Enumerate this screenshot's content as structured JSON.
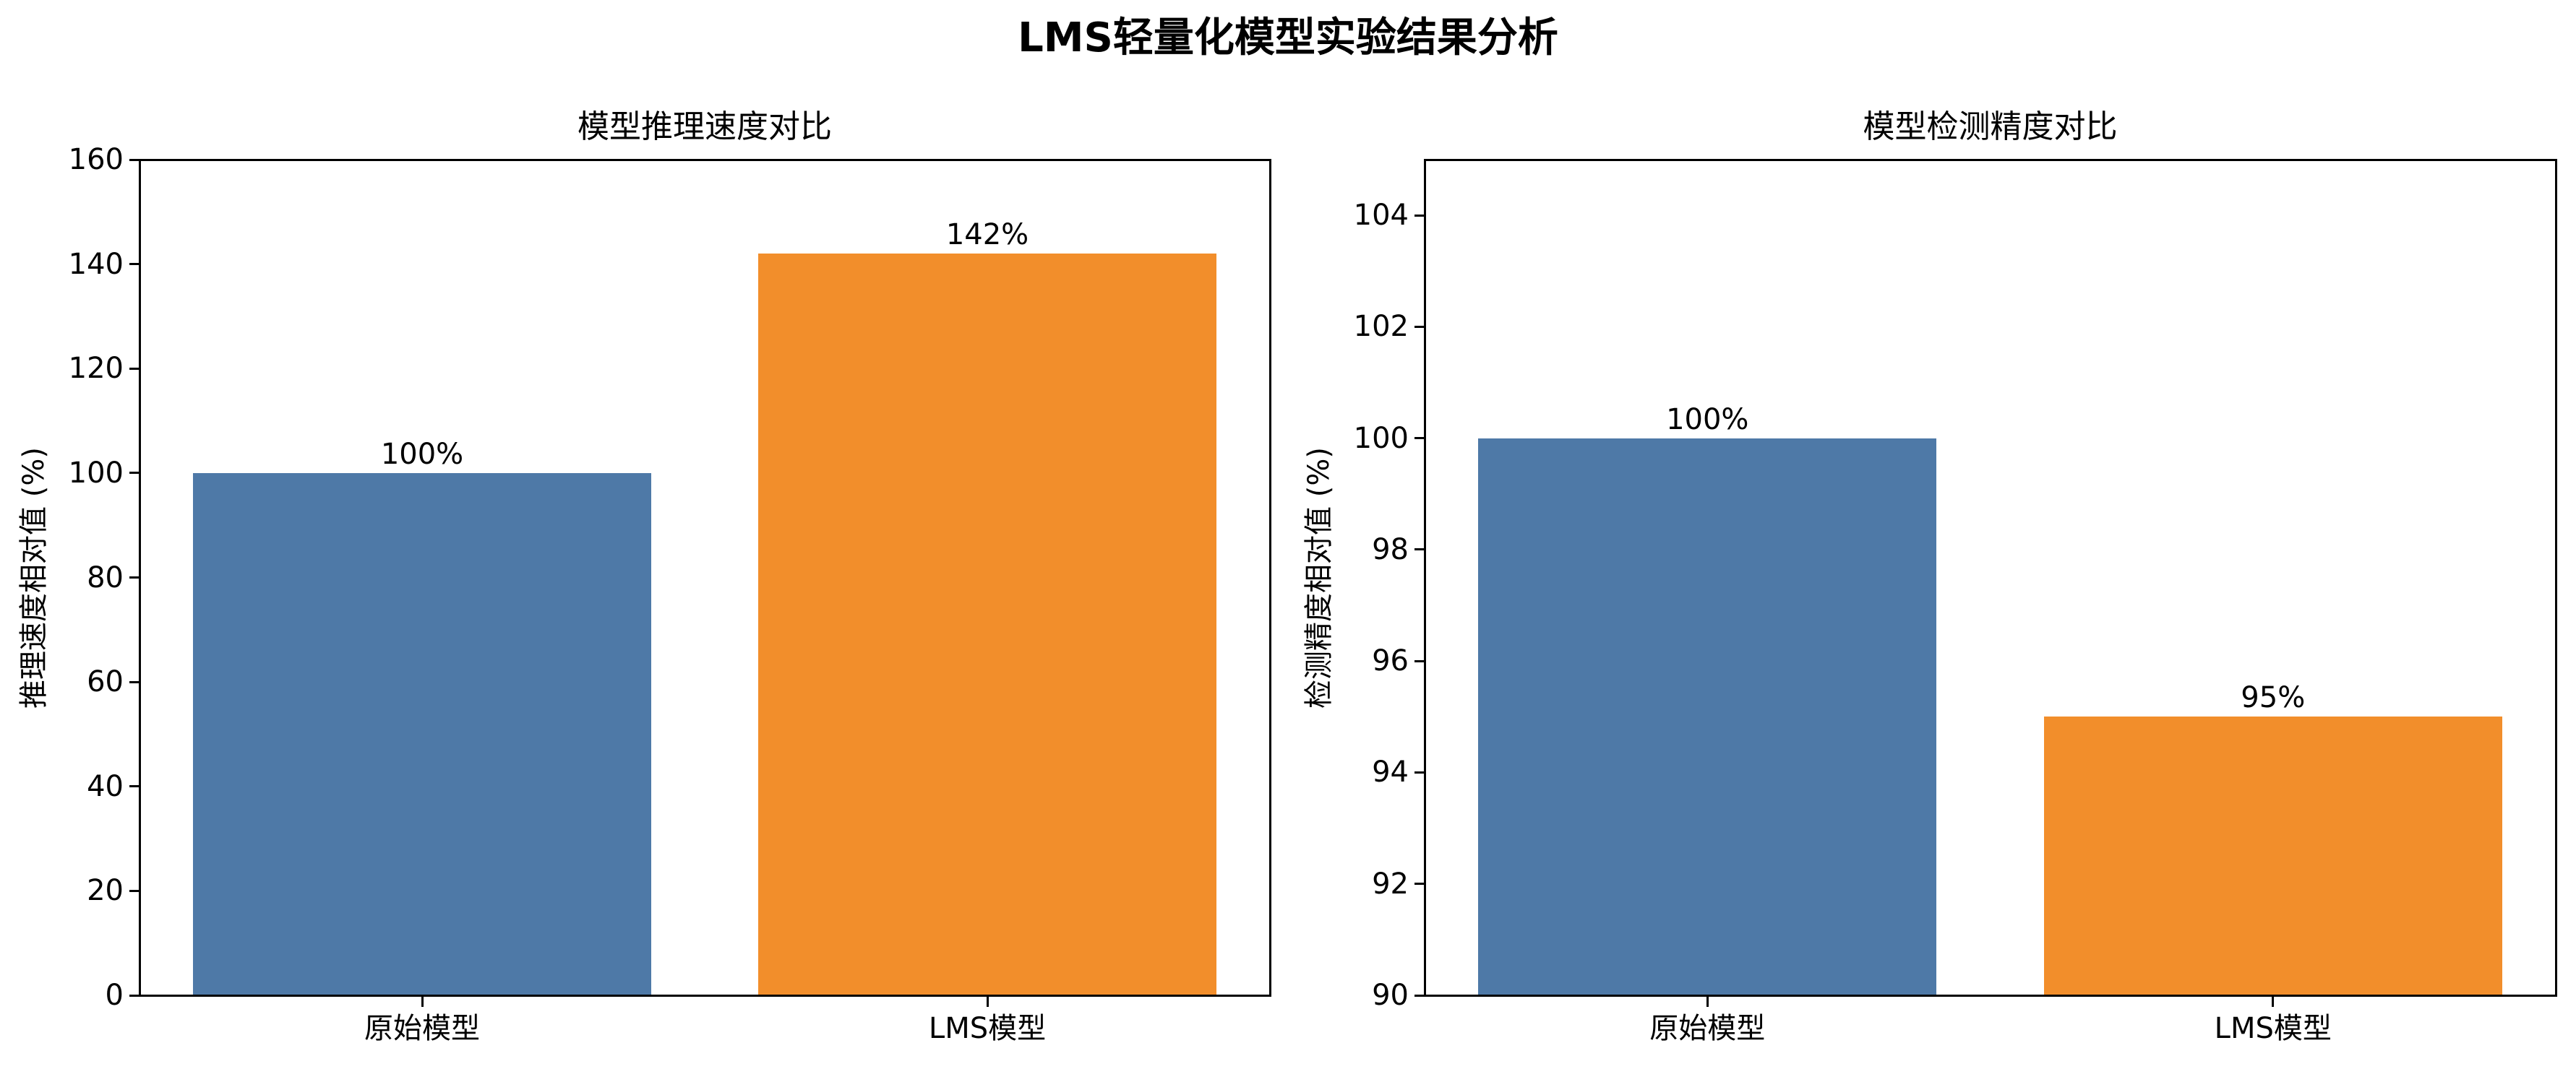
{
  "figure": {
    "title": "LMS轻量化模型实验结果分析",
    "colors": {
      "original": "#4e79a7",
      "lms": "#f28e2b",
      "axis": "#000000",
      "background": "#ffffff"
    }
  },
  "chart_data": [
    {
      "type": "bar",
      "title": "模型推理速度对比",
      "xlabel": "",
      "ylabel": "推理速度相对值 (%)",
      "categories": [
        "原始模型",
        "LMS模型"
      ],
      "values": [
        100,
        142
      ],
      "value_labels": [
        "100%",
        "142%"
      ],
      "colors": [
        "#4e79a7",
        "#f28e2b"
      ],
      "ylim": [
        0,
        160
      ],
      "yticks": [
        0,
        20,
        40,
        60,
        80,
        100,
        120,
        140,
        160
      ],
      "grid": false,
      "legend": null
    },
    {
      "type": "bar",
      "title": "模型检测精度对比",
      "xlabel": "",
      "ylabel": "检测精度相对值 (%)",
      "categories": [
        "原始模型",
        "LMS模型"
      ],
      "values": [
        100,
        95
      ],
      "value_labels": [
        "100%",
        "95%"
      ],
      "colors": [
        "#4e79a7",
        "#f28e2b"
      ],
      "ylim": [
        90,
        105
      ],
      "yticks": [
        90,
        92,
        94,
        96,
        98,
        100,
        102,
        104
      ],
      "grid": false,
      "legend": null
    }
  ]
}
